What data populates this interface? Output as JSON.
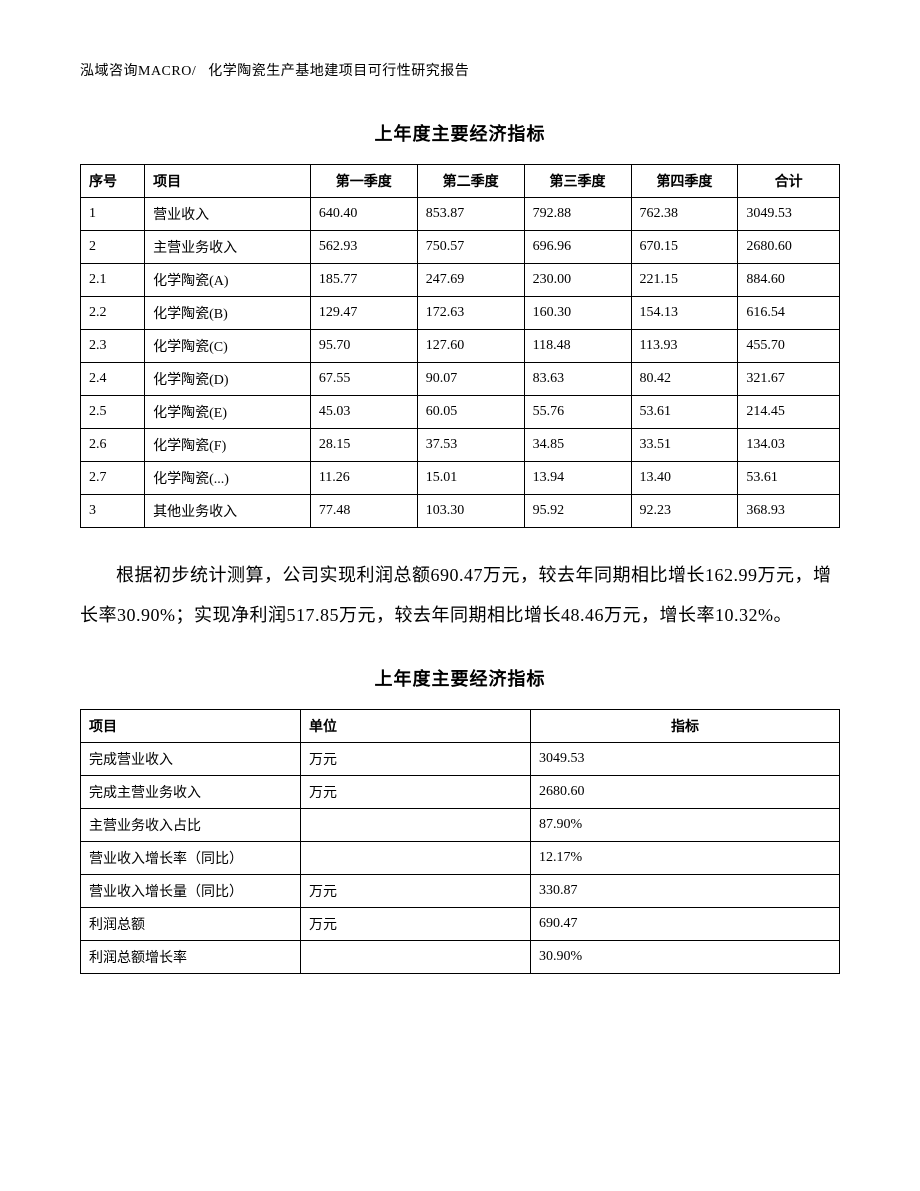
{
  "header": {
    "company": "泓域咨询MACRO/",
    "doc_title": "化学陶瓷生产基地建项目可行性研究报告"
  },
  "table1": {
    "title": "上年度主要经济指标",
    "columns": [
      "序号",
      "项目",
      "第一季度",
      "第二季度",
      "第三季度",
      "第四季度",
      "合计"
    ],
    "rows": [
      [
        "1",
        "营业收入",
        "640.40",
        "853.87",
        "792.88",
        "762.38",
        "3049.53"
      ],
      [
        "2",
        "主营业务收入",
        "562.93",
        "750.57",
        "696.96",
        "670.15",
        "2680.60"
      ],
      [
        "2.1",
        "化学陶瓷(A)",
        "185.77",
        "247.69",
        "230.00",
        "221.15",
        "884.60"
      ],
      [
        "2.2",
        "化学陶瓷(B)",
        "129.47",
        "172.63",
        "160.30",
        "154.13",
        "616.54"
      ],
      [
        "2.3",
        "化学陶瓷(C)",
        "95.70",
        "127.60",
        "118.48",
        "113.93",
        "455.70"
      ],
      [
        "2.4",
        "化学陶瓷(D)",
        "67.55",
        "90.07",
        "83.63",
        "80.42",
        "321.67"
      ],
      [
        "2.5",
        "化学陶瓷(E)",
        "45.03",
        "60.05",
        "55.76",
        "53.61",
        "214.45"
      ],
      [
        "2.6",
        "化学陶瓷(F)",
        "28.15",
        "37.53",
        "34.85",
        "33.51",
        "134.03"
      ],
      [
        "2.7",
        "化学陶瓷(...)",
        "11.26",
        "15.01",
        "13.94",
        "13.40",
        "53.61"
      ],
      [
        "3",
        "其他业务收入",
        "77.48",
        "103.30",
        "95.92",
        "92.23",
        "368.93"
      ]
    ]
  },
  "paragraph": "根据初步统计测算，公司实现利润总额690.47万元，较去年同期相比增长162.99万元，增长率30.90%；实现净利润517.85万元，较去年同期相比增长48.46万元，增长率10.32%。",
  "table2": {
    "title": "上年度主要经济指标",
    "columns": [
      "项目",
      "单位",
      "指标"
    ],
    "rows": [
      [
        "完成营业收入",
        "万元",
        "3049.53"
      ],
      [
        "完成主营业务收入",
        "万元",
        "2680.60"
      ],
      [
        "主营业务收入占比",
        "",
        "87.90%"
      ],
      [
        "营业收入增长率（同比）",
        "",
        "12.17%"
      ],
      [
        "营业收入增长量（同比）",
        "万元",
        "330.87"
      ],
      [
        "利润总额",
        "万元",
        "690.47"
      ],
      [
        "利润总额增长率",
        "",
        "30.90%"
      ]
    ]
  }
}
